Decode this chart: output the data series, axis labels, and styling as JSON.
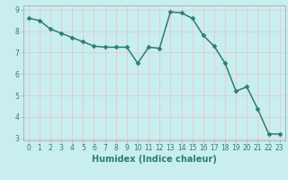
{
  "x": [
    0,
    1,
    2,
    3,
    4,
    5,
    6,
    7,
    8,
    9,
    10,
    11,
    12,
    13,
    14,
    15,
    16,
    17,
    18,
    19,
    20,
    21,
    22,
    23
  ],
  "y": [
    8.6,
    8.5,
    8.1,
    7.9,
    7.7,
    7.5,
    7.3,
    7.25,
    7.25,
    7.25,
    6.5,
    7.25,
    7.2,
    8.9,
    8.85,
    8.6,
    7.8,
    7.3,
    6.5,
    5.2,
    5.4,
    4.35,
    3.2,
    3.2
  ],
  "line_color": "#2e7d6e",
  "marker": "D",
  "markersize": 2.5,
  "bg_color": "#c8eef0",
  "grid_color": "#e8c8c8",
  "xlabel": "Humidex (Indice chaleur)",
  "ylim_min": 2.9,
  "ylim_max": 9.2,
  "xlim_min": -0.5,
  "xlim_max": 23.5,
  "yticks": [
    3,
    4,
    5,
    6,
    7,
    8,
    9
  ],
  "xticks": [
    0,
    1,
    2,
    3,
    4,
    5,
    6,
    7,
    8,
    9,
    10,
    11,
    12,
    13,
    14,
    15,
    16,
    17,
    18,
    19,
    20,
    21,
    22,
    23
  ],
  "tick_fontsize": 5.5,
  "xlabel_fontsize": 7,
  "linewidth": 1.1,
  "spine_color": "#aaaaaa"
}
